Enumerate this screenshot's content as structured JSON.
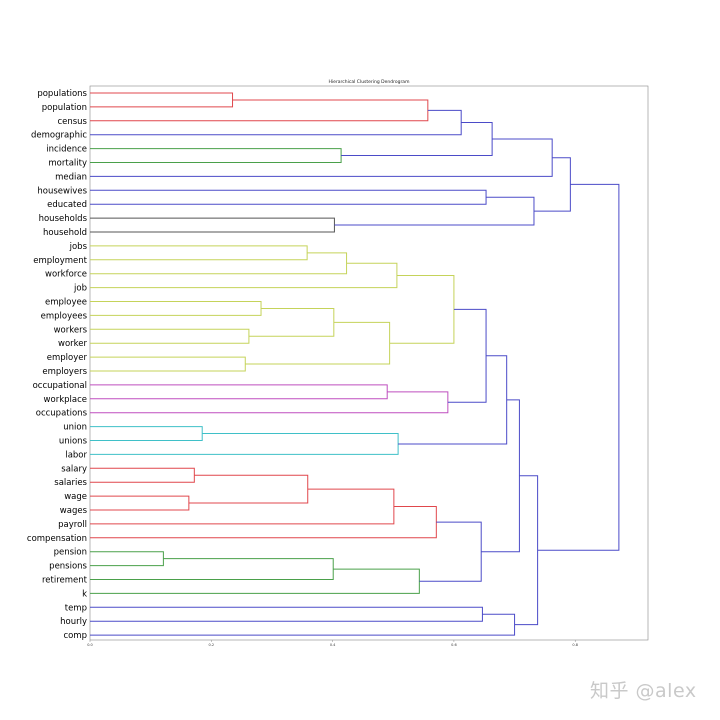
{
  "chart_data": {
    "type": "dendrogram",
    "title": "Hierarchical Clustering Dendrogram",
    "orientation": "left-to-right",
    "xlim": [
      0,
      0.92
    ],
    "x_ticks": [
      "0.0",
      "0.2",
      "0.4",
      "0.6",
      "0.8"
    ],
    "x_tick_values": [
      0,
      0.2,
      0.4,
      0.6,
      0.8
    ],
    "grid": false,
    "leaves": [
      "populations",
      "population",
      "census",
      "demographic",
      "incidence",
      "mortality",
      "median",
      "housewives",
      "educated",
      "households",
      "household",
      "jobs",
      "employment",
      "workforce",
      "job",
      "employee",
      "employees",
      "workers",
      "worker",
      "employer",
      "employers",
      "occupational",
      "workplace",
      "occupations",
      "union",
      "unions",
      "labor",
      "salary",
      "salaries",
      "wage",
      "wages",
      "payroll",
      "compensation",
      "pension",
      "pensions",
      "retirement",
      "k",
      "temp",
      "hourly",
      "comp"
    ],
    "merges": [
      {
        "a": "populations",
        "b": "population",
        "height": 0.235,
        "color": "#e0474c"
      },
      {
        "a": "m1",
        "b": "census",
        "height": 0.557,
        "color": "#e0474c"
      },
      {
        "a": "m2",
        "b": "demographic",
        "height": 0.612,
        "color": "#4b4bc8"
      },
      {
        "a": "incidence",
        "b": "mortality",
        "height": 0.414,
        "color": "#4aa04a"
      },
      {
        "a": "m3",
        "b": "m4",
        "height": 0.663,
        "color": "#4b4bc8"
      },
      {
        "a": "m5",
        "b": "median",
        "height": 0.762,
        "color": "#4b4bc8"
      },
      {
        "a": "housewives",
        "b": "educated",
        "height": 0.653,
        "color": "#4b4bc8"
      },
      {
        "a": "households",
        "b": "household",
        "height": 0.403,
        "color": "#555555"
      },
      {
        "a": "m7",
        "b": "m8",
        "height": 0.732,
        "color": "#4b4bc8"
      },
      {
        "a": "m6",
        "b": "m9",
        "height": 0.792,
        "color": "#4b4bc8"
      },
      {
        "a": "jobs",
        "b": "employment",
        "height": 0.358,
        "color": "#c5d35a"
      },
      {
        "a": "m11",
        "b": "workforce",
        "height": 0.423,
        "color": "#c5d35a"
      },
      {
        "a": "m12",
        "b": "job",
        "height": 0.506,
        "color": "#c5d35a"
      },
      {
        "a": "employee",
        "b": "employees",
        "height": 0.282,
        "color": "#c5d35a"
      },
      {
        "a": "workers",
        "b": "worker",
        "height": 0.262,
        "color": "#c5d35a"
      },
      {
        "a": "m14",
        "b": "m15",
        "height": 0.402,
        "color": "#c5d35a"
      },
      {
        "a": "employer",
        "b": "employers",
        "height": 0.256,
        "color": "#c5d35a"
      },
      {
        "a": "m16",
        "b": "m17",
        "height": 0.494,
        "color": "#c5d35a"
      },
      {
        "a": "m13",
        "b": "m18",
        "height": 0.6,
        "color": "#c5d35a"
      },
      {
        "a": "occupational",
        "b": "workplace",
        "height": 0.49,
        "color": "#bf4fbf"
      },
      {
        "a": "m20",
        "b": "occupations",
        "height": 0.59,
        "color": "#bf4fbf"
      },
      {
        "a": "m19",
        "b": "m21",
        "height": 0.653,
        "color": "#4b4bc8"
      },
      {
        "a": "union",
        "b": "unions",
        "height": 0.185,
        "color": "#3fc0c8"
      },
      {
        "a": "m23",
        "b": "labor",
        "height": 0.508,
        "color": "#3fc0c8"
      },
      {
        "a": "m22",
        "b": "m24",
        "height": 0.687,
        "color": "#4b4bc8"
      },
      {
        "a": "salary",
        "b": "salaries",
        "height": 0.172,
        "color": "#e0474c"
      },
      {
        "a": "wage",
        "b": "wages",
        "height": 0.163,
        "color": "#e0474c"
      },
      {
        "a": "m26",
        "b": "m27",
        "height": 0.359,
        "color": "#e0474c"
      },
      {
        "a": "m28",
        "b": "payroll",
        "height": 0.501,
        "color": "#e0474c"
      },
      {
        "a": "m29",
        "b": "compensation",
        "height": 0.571,
        "color": "#e0474c"
      },
      {
        "a": "pension",
        "b": "pensions",
        "height": 0.121,
        "color": "#4aa04a"
      },
      {
        "a": "m31",
        "b": "retirement",
        "height": 0.401,
        "color": "#4aa04a"
      },
      {
        "a": "m32",
        "b": "k",
        "height": 0.543,
        "color": "#4aa04a"
      },
      {
        "a": "m30",
        "b": "m33",
        "height": 0.645,
        "color": "#4b4bc8"
      },
      {
        "a": "m25",
        "b": "m34",
        "height": 0.708,
        "color": "#4b4bc8"
      },
      {
        "a": "temp",
        "b": "hourly",
        "height": 0.647,
        "color": "#4b4bc8"
      },
      {
        "a": "m36",
        "b": "comp",
        "height": 0.7,
        "color": "#4b4bc8"
      },
      {
        "a": "m35",
        "b": "m37",
        "height": 0.738,
        "color": "#4b4bc8"
      },
      {
        "a": "m10",
        "b": "m38",
        "height": 0.872,
        "color": "#4b4bc8"
      }
    ]
  },
  "watermark": "知乎 @alex"
}
